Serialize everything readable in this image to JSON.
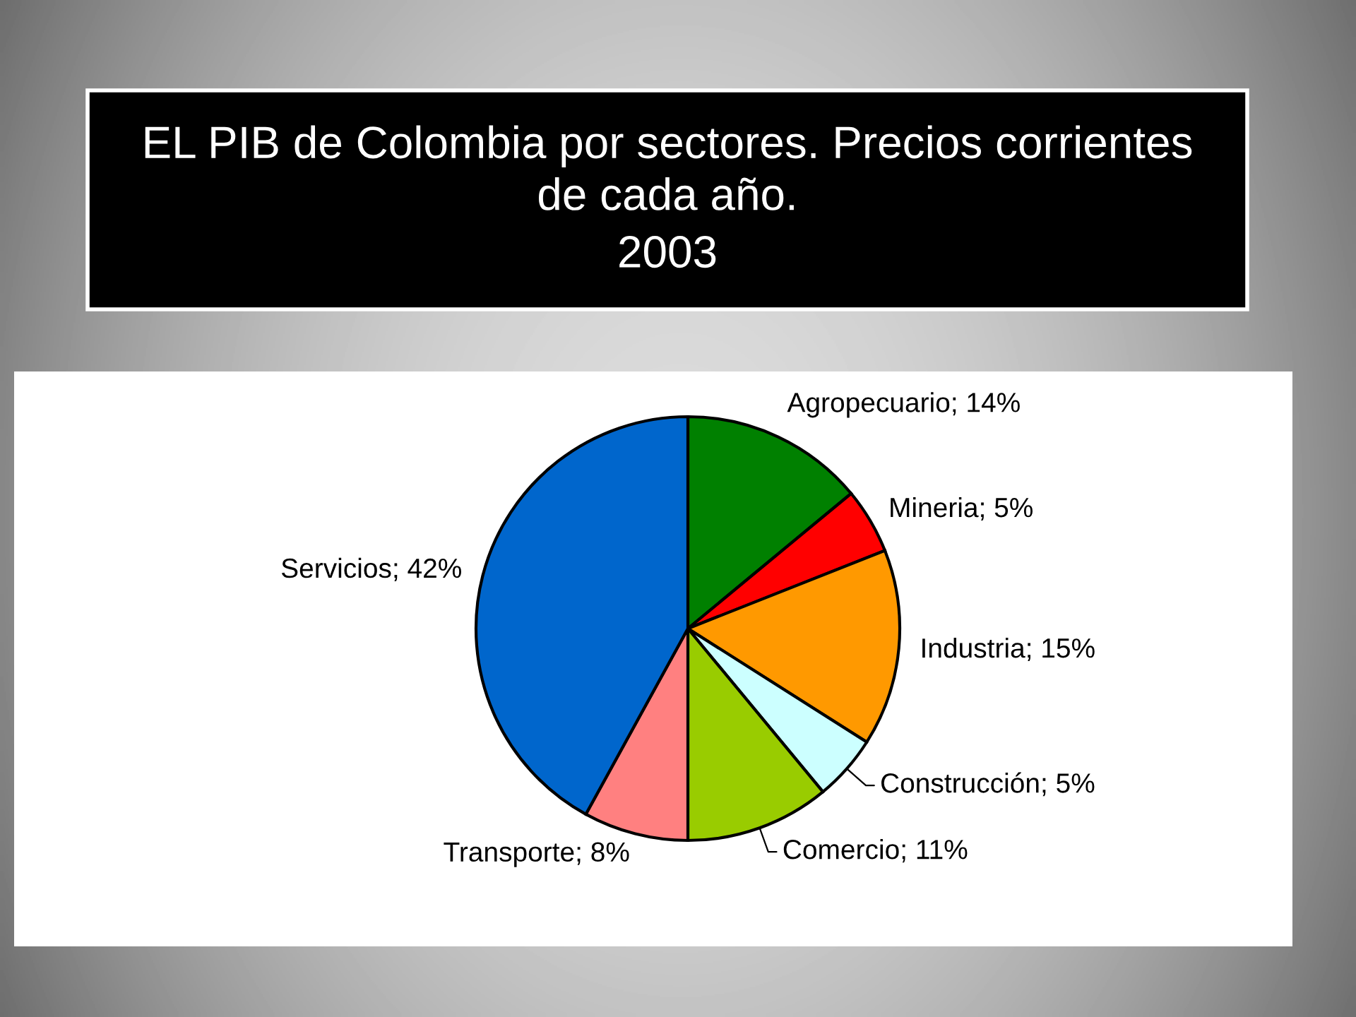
{
  "chart_data": {
    "type": "pie",
    "title": "EL PIB de Colombia por sectores. Precios corrientes de cada año.",
    "subtitle": "2003",
    "categories": [
      "Agropecuario",
      "Mineria",
      "Industria",
      "Construcción",
      "Comercio",
      "Transporte",
      "Servicios"
    ],
    "values": [
      14,
      5,
      15,
      5,
      11,
      8,
      42
    ],
    "colors": [
      "#008000",
      "#ff0000",
      "#ff9900",
      "#ccffff",
      "#99cc00",
      "#ff8080",
      "#0066cc"
    ],
    "value_labels": [
      "14%",
      "5%",
      "15%",
      "5%",
      "11%",
      "8%",
      "42%"
    ]
  }
}
